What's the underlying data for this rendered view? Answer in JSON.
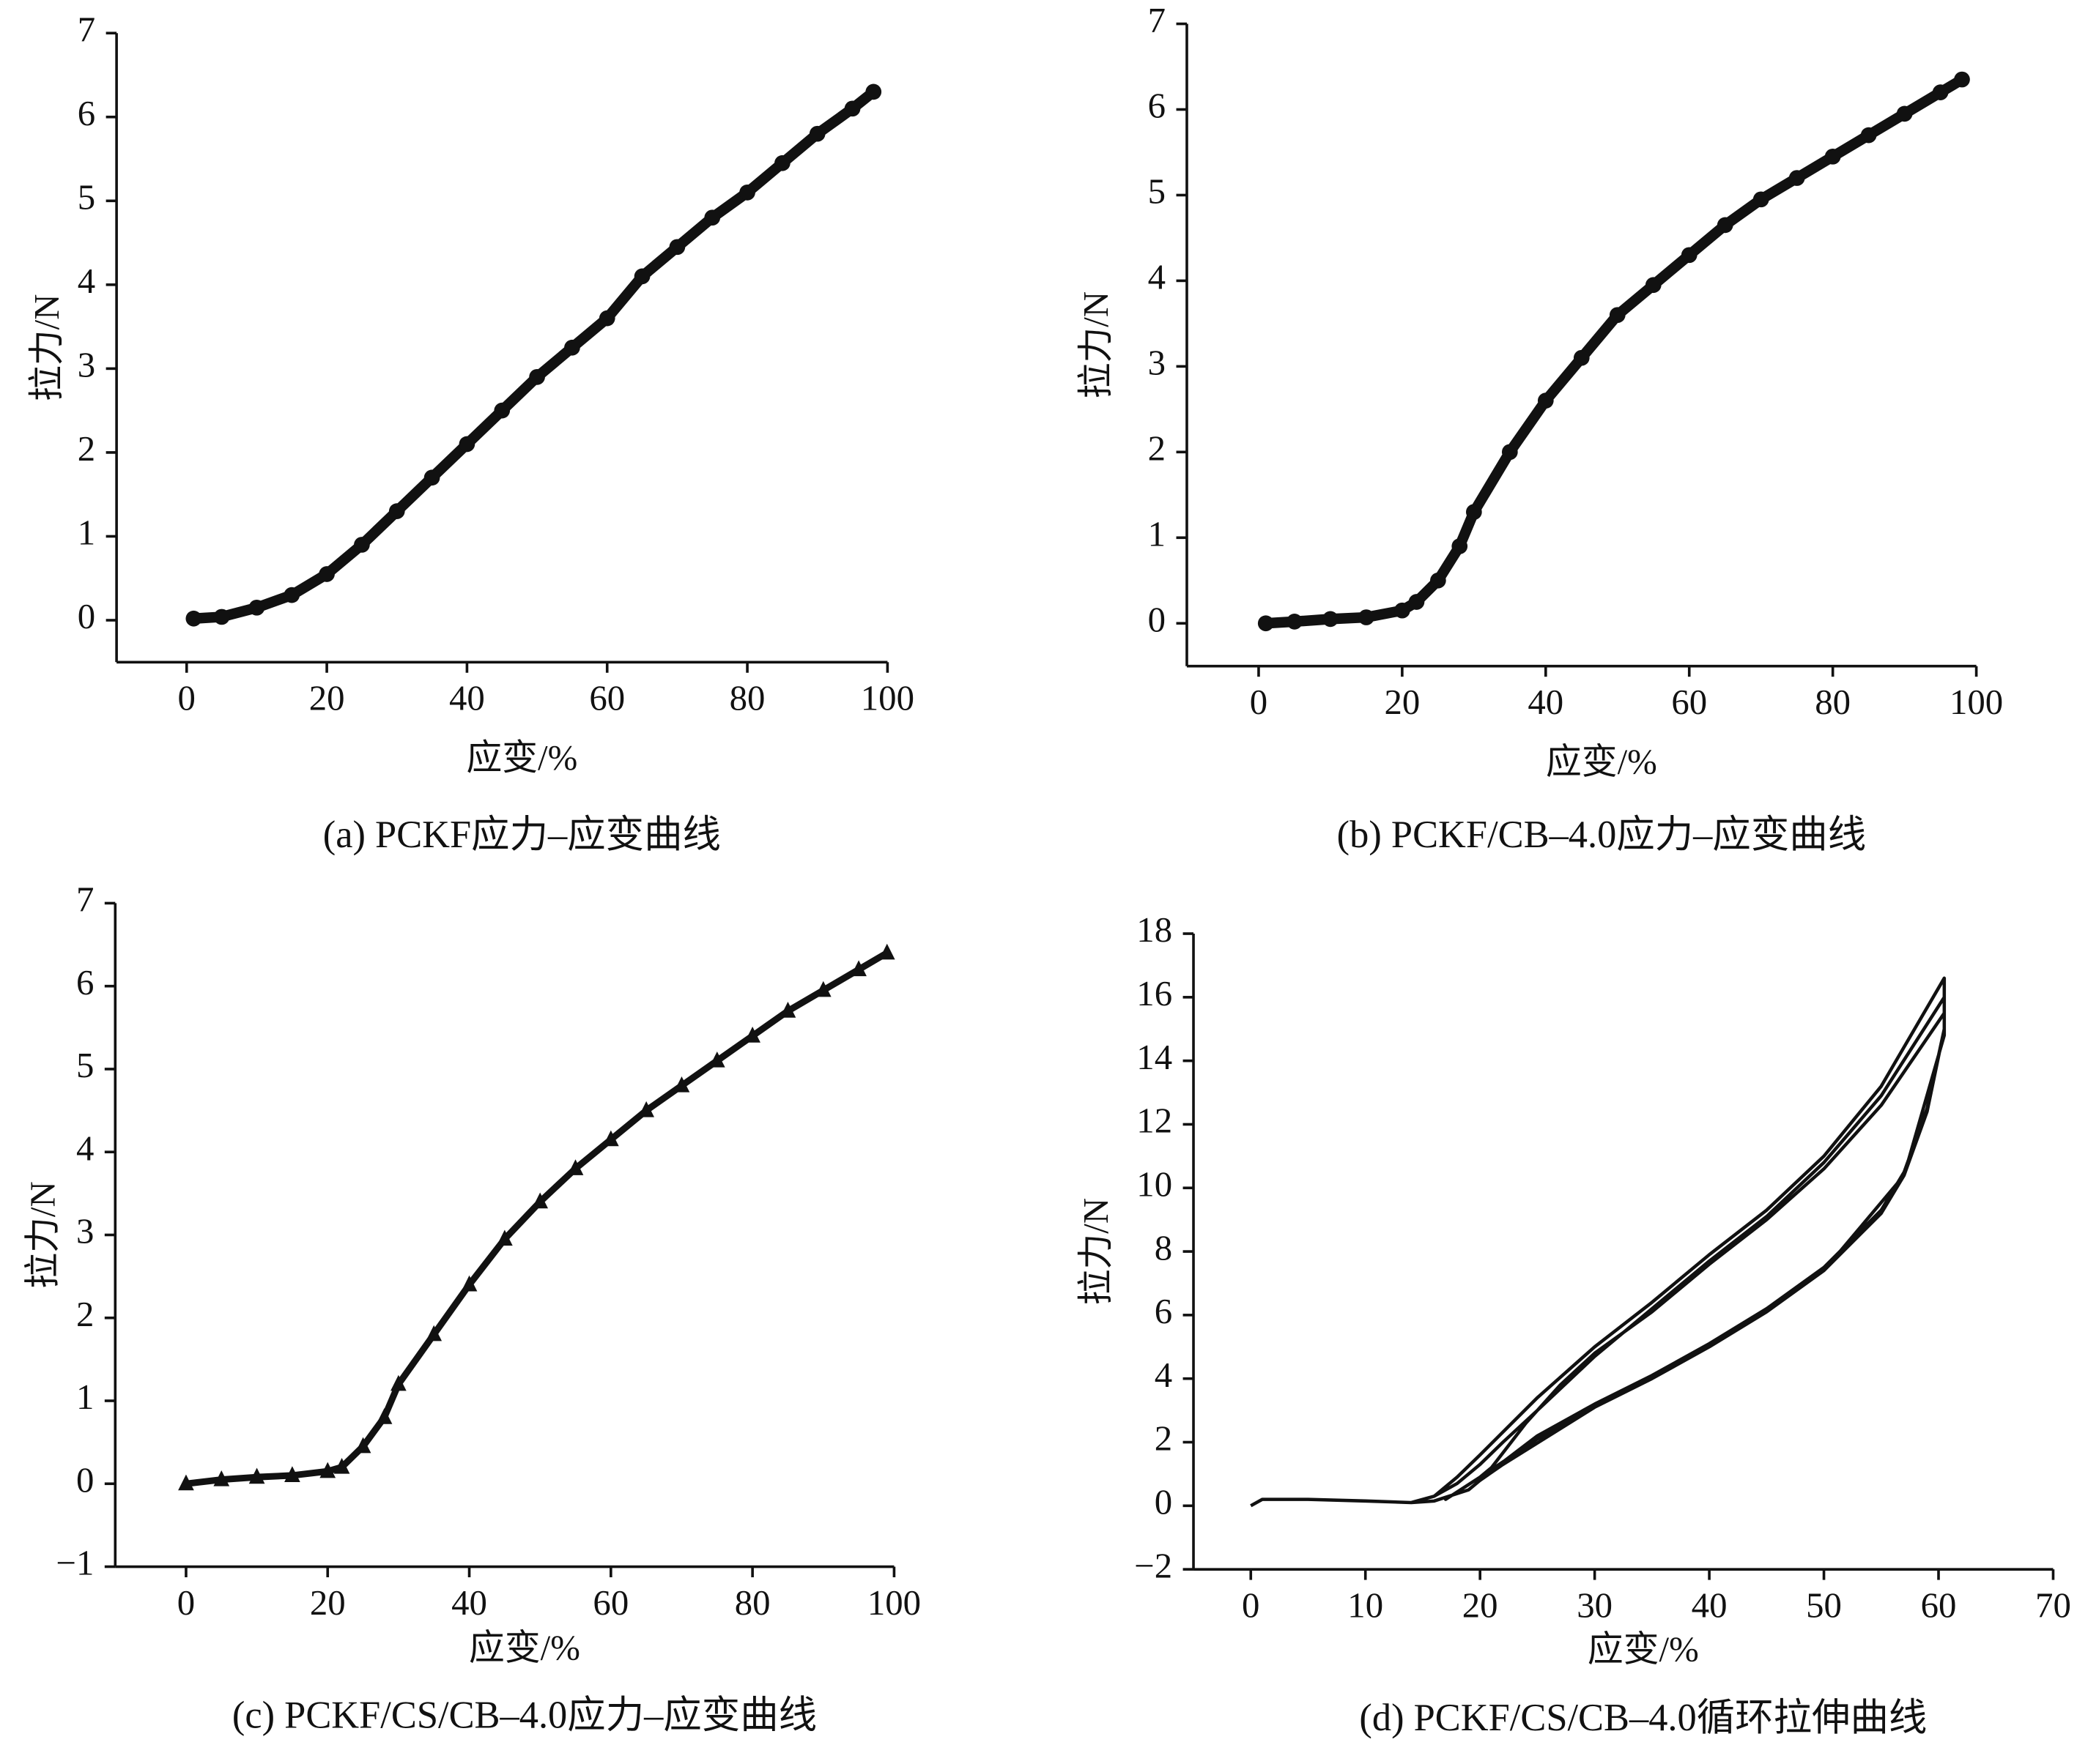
{
  "chart_data": [
    {
      "type": "line",
      "title": "(a) PCKF应力–应变曲线",
      "xlabel": "应变/%",
      "ylabel": "拉力/N",
      "marker": "circle",
      "color": "#111111",
      "x": [
        1,
        5,
        10,
        15,
        20,
        25,
        30,
        35,
        40,
        45,
        50,
        55,
        60,
        65,
        70,
        75,
        80,
        85,
        90,
        95,
        98
      ],
      "values": [
        0.02,
        0.04,
        0.15,
        0.3,
        0.55,
        0.9,
        1.3,
        1.7,
        2.1,
        2.5,
        2.9,
        3.25,
        3.6,
        4.1,
        4.45,
        4.8,
        5.1,
        5.45,
        5.8,
        6.1,
        6.3
      ],
      "xlim": [
        -10,
        100
      ],
      "ylim": [
        -0.5,
        7
      ],
      "xticks": [
        0,
        20,
        40,
        60,
        80,
        100
      ],
      "yticks": [
        0,
        1,
        2,
        3,
        4,
        5,
        6,
        7
      ]
    },
    {
      "type": "line",
      "title": "(b) PCKF/CB–4.0应力–应变曲线",
      "xlabel": "应变/%",
      "ylabel": "拉力/N",
      "marker": "circle",
      "color": "#111111",
      "x": [
        1,
        5,
        10,
        15,
        20,
        22,
        25,
        28,
        30,
        35,
        40,
        45,
        50,
        55,
        60,
        65,
        70,
        75,
        80,
        85,
        90,
        95,
        98
      ],
      "values": [
        0,
        0.02,
        0.05,
        0.07,
        0.15,
        0.25,
        0.5,
        0.9,
        1.3,
        2.0,
        2.6,
        3.1,
        3.6,
        3.95,
        4.3,
        4.65,
        4.95,
        5.2,
        5.45,
        5.7,
        5.95,
        6.2,
        6.35
      ],
      "xlim": [
        -10,
        100
      ],
      "ylim": [
        -0.5,
        7
      ],
      "xticks": [
        0,
        20,
        40,
        60,
        80,
        100
      ],
      "yticks": [
        0,
        1,
        2,
        3,
        4,
        5,
        6,
        7
      ]
    },
    {
      "type": "line",
      "title": "(c) PCKF/CS/CB–4.0应力–应变曲线",
      "xlabel": "应变/%",
      "ylabel": "拉力/N",
      "marker": "triangle",
      "color": "#111111",
      "x": [
        0,
        5,
        10,
        15,
        20,
        22,
        25,
        28,
        30,
        35,
        40,
        45,
        50,
        55,
        60,
        65,
        70,
        75,
        80,
        85,
        90,
        95,
        99
      ],
      "values": [
        0,
        0.05,
        0.08,
        0.1,
        0.15,
        0.2,
        0.45,
        0.8,
        1.2,
        1.8,
        2.4,
        2.95,
        3.4,
        3.8,
        4.15,
        4.5,
        4.8,
        5.1,
        5.4,
        5.7,
        5.95,
        6.2,
        6.4
      ],
      "xlim": [
        -10,
        100
      ],
      "ylim": [
        -1,
        7
      ],
      "xticks": [
        0,
        20,
        40,
        60,
        80,
        100
      ],
      "yticks": [
        {
          "value": -1,
          "label": "−1"
        },
        0,
        1,
        2,
        3,
        4,
        5,
        6,
        7
      ]
    },
    {
      "type": "line",
      "title": "(d) PCKF/CS/CB–4.0循环拉伸曲线",
      "xlabel": "应变/%",
      "ylabel": "拉力/N",
      "marker": "none",
      "color": "#111111",
      "x": [
        0,
        1,
        5,
        10,
        14,
        16,
        18,
        20,
        25,
        30,
        35,
        40,
        45,
        50,
        55,
        60.5,
        60.5,
        59,
        57,
        55,
        50,
        45,
        40,
        35,
        30,
        25,
        21,
        19,
        16,
        14,
        16,
        18,
        20,
        22,
        25,
        30,
        35,
        40,
        45,
        50,
        55,
        60.5,
        60.5,
        59,
        57,
        55,
        50,
        45,
        40,
        35,
        30,
        25,
        20,
        17,
        20,
        21,
        24,
        27,
        30,
        35,
        40,
        45,
        50,
        55,
        60.5,
        60.5,
        57,
        50,
        40,
        30,
        22,
        20
      ],
      "values": [
        0,
        0.2,
        0.2,
        0.15,
        0.1,
        0.3,
        0.9,
        1.6,
        3.4,
        5,
        6.4,
        7.9,
        9.3,
        11,
        13.2,
        16.6,
        15,
        12.5,
        10.5,
        9.3,
        7.5,
        6.2,
        5.1,
        4.1,
        3.2,
        2.2,
        1.1,
        0.5,
        0.15,
        0.1,
        0.3,
        0.7,
        1.3,
        2,
        3,
        4.7,
        6.2,
        7.7,
        9.1,
        10.8,
        12.9,
        16,
        15,
        12.4,
        10.4,
        9.2,
        7.4,
        6.1,
        5,
        4,
        3.1,
        2.1,
        0.9,
        0.2,
        0.9,
        1.2,
        2.6,
        3.8,
        4.8,
        6.1,
        7.6,
        9,
        10.6,
        12.6,
        15.5,
        14.8,
        10.4,
        7.4,
        5,
        3.1,
        1.3,
        0.8
      ],
      "xlim": [
        -5,
        70
      ],
      "ylim": [
        -2,
        18
      ],
      "xticks": [
        0,
        10,
        20,
        30,
        40,
        50,
        60,
        70
      ],
      "yticks": [
        {
          "value": -2,
          "label": "−2"
        },
        0,
        2,
        4,
        6,
        8,
        10,
        12,
        14,
        16,
        18
      ]
    }
  ]
}
